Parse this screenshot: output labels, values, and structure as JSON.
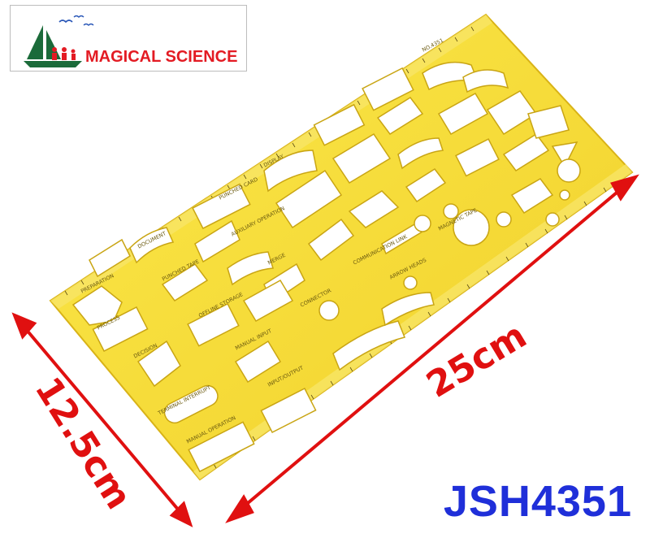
{
  "logo": {
    "text": "MAGICAL SCIENCE",
    "colors": {
      "text": "#e31b23",
      "sail": "#1b6b3a",
      "figures": "#e31b23"
    }
  },
  "dimensions": {
    "width_label": "25cm",
    "height_label": "12.5cm",
    "arrow_color": "#e01010"
  },
  "model_code": "JSH4351",
  "stencil": {
    "color": "#f5e23a",
    "symbol_labels": [
      "PREPARATION",
      "PROCESS",
      "DECISION",
      "TERMINAL INTERRUPT",
      "MANUAL OPERATION",
      "DISPLAY",
      "PUNCHED CARD",
      "PUNCHED TAPE",
      "DOCUMENT",
      "OFFLINE STORAGE",
      "MANUAL INPUT",
      "INPUT/OUTPUT",
      "AUXILIARY OPERATION",
      "MERGE",
      "CONNECTOR",
      "COMMUNICATION LINK",
      "ARROW HEADS",
      "MAGNETIC TAPE",
      "NO.4351"
    ]
  }
}
